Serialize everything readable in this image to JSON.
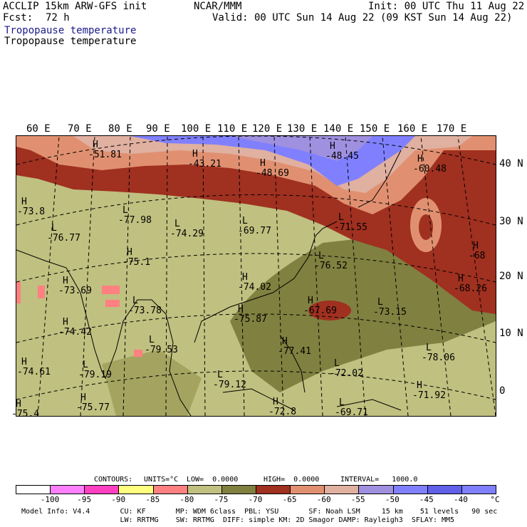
{
  "header": {
    "model": "ACCLIP 15km ARW-GFS init",
    "fcst_label": "Fcst:",
    "fcst_value": "72 h",
    "center": "NCAR/MMM",
    "init": "Init: 00 UTC Thu 11 Aug 22",
    "valid": "Valid: 00 UTC Sun 14 Aug 22 (09 KST Sun 14 Aug 22)",
    "field1": "Tropopause temperature",
    "field2": "Tropopause temperature"
  },
  "longitude_labels": [
    "60 E",
    "70 E",
    "80 E",
    "90 E",
    "100 E",
    "110 E",
    "120 E",
    "130 E",
    "140 E",
    "150 E",
    "160 E",
    "170 E"
  ],
  "latitude_labels": [
    "40 N",
    "30 N",
    "20 N",
    "10 N",
    "0"
  ],
  "map": {
    "extrema": [
      {
        "letter": "H",
        "value": "-51.81"
      },
      {
        "letter": "H",
        "value": "-43.21"
      },
      {
        "letter": "H",
        "value": "-48.69"
      },
      {
        "letter": "H",
        "value": "-48.45"
      },
      {
        "letter": "H",
        "value": "-60.48"
      },
      {
        "letter": "H",
        "value": "-73.8"
      },
      {
        "letter": "L",
        "value": "-77.98"
      },
      {
        "letter": "L",
        "value": "-74.29"
      },
      {
        "letter": "L",
        "value": "-69.77"
      },
      {
        "letter": "L",
        "value": "-71.55"
      },
      {
        "letter": "L",
        "value": "-76.77"
      },
      {
        "letter": "H",
        "value": "-75.1"
      },
      {
        "letter": "L",
        "value": "-76.52"
      },
      {
        "letter": "H",
        "value": "-68"
      },
      {
        "letter": "H",
        "value": "-74.02"
      },
      {
        "letter": "H",
        "value": "-73.69"
      },
      {
        "letter": "H",
        "value": "-68.26"
      },
      {
        "letter": "L",
        "value": "-73.78"
      },
      {
        "letter": "H",
        "value": "-67.69"
      },
      {
        "letter": "L",
        "value": "-73.15"
      },
      {
        "letter": "H",
        "value": "-75.87"
      },
      {
        "letter": "H",
        "value": "-74.42"
      },
      {
        "letter": "L",
        "value": "-79.53"
      },
      {
        "letter": "H",
        "value": "-77.41"
      },
      {
        "letter": "L",
        "value": "-78.06"
      },
      {
        "letter": "H",
        "value": "-74.61"
      },
      {
        "letter": "L",
        "value": "-79.19"
      },
      {
        "letter": "L",
        "value": "-72.02"
      },
      {
        "letter": "L",
        "value": "-79.12"
      },
      {
        "letter": "H",
        "value": "-71.92"
      },
      {
        "letter": "H",
        "value": "-75.77"
      },
      {
        "letter": "H",
        "value": "-72.8"
      },
      {
        "letter": "L",
        "value": "-69.71"
      },
      {
        "letter": "H",
        "value": "-75.4"
      }
    ]
  },
  "contours_info": {
    "contours": "CONTOURS:",
    "units": "UNITS=°C",
    "low": "LOW=  0.0000",
    "high": "HIGH=  0.0000",
    "interval": "INTERVAL=   1000.0"
  },
  "colorbar": {
    "colors": [
      "#ffffff",
      "#ff80ff",
      "#ff40c0",
      "#ffff80",
      "#ff8080",
      "#c0c080",
      "#808040",
      "#a03020",
      "#e09070",
      "#e0b0a0",
      "#a090e0",
      "#8080ff",
      "#6060e8",
      "#8080ff"
    ],
    "labels": [
      "-100",
      "-95",
      "-90",
      "-85",
      "-80",
      "-75",
      "-70",
      "-65",
      "-60",
      "-55",
      "-50",
      "-45",
      "-40",
      "°C"
    ]
  },
  "footer": {
    "line1": "Model Info: V4.4       CU: KF       MP: WDM 6class  PBL: YSU       SF: Noah LSM     15 km    51 levels   90 sec",
    "line2": "                       LW: RRTMG    SW: RRTMG  DIFF: simple KM: 2D Smagor DAMP: Rayleigh3  SFLAY: MM5"
  }
}
